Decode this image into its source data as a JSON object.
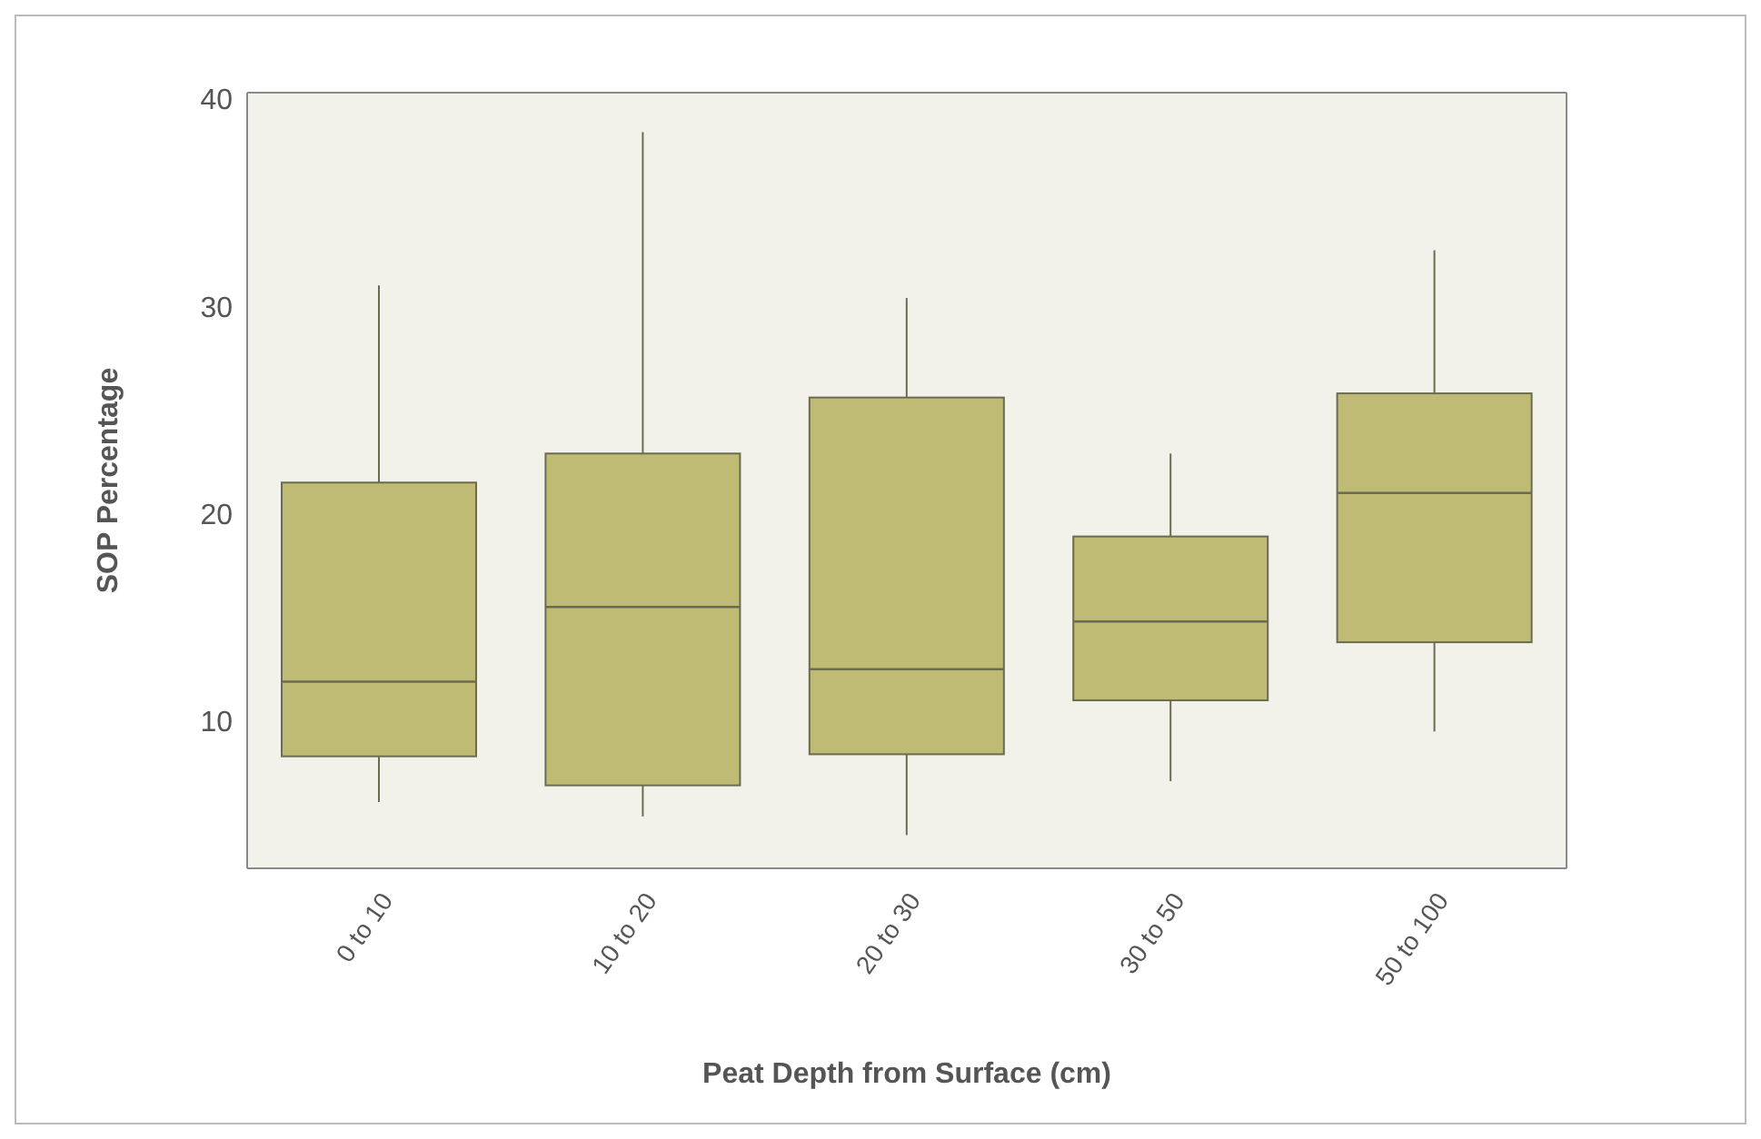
{
  "chart_data": {
    "type": "box",
    "xlabel": "Peat Depth from Surface (cm)",
    "ylabel": "SOP Percentage",
    "categories": [
      "0 to 10",
      "10 to 20",
      "20 to 30",
      "30 to 50",
      "50 to 100"
    ],
    "color": "#c0bb74",
    "ylim": [
      2.9,
      40.3
    ],
    "yticks": [
      10,
      20,
      30,
      40
    ],
    "grid": false,
    "boxes": [
      {
        "low": 6.1,
        "q1": 8.3,
        "median": 11.9,
        "q3": 21.5,
        "high": 31.0
      },
      {
        "low": 5.4,
        "q1": 6.9,
        "median": 15.5,
        "q3": 22.9,
        "high": 38.4
      },
      {
        "low": 4.5,
        "q1": 8.4,
        "median": 12.5,
        "q3": 25.6,
        "high": 30.4
      },
      {
        "low": 7.1,
        "q1": 11.0,
        "median": 14.8,
        "q3": 18.9,
        "high": 22.9
      },
      {
        "low": 9.5,
        "q1": 13.8,
        "median": 21.0,
        "q3": 25.8,
        "high": 32.7
      }
    ]
  }
}
